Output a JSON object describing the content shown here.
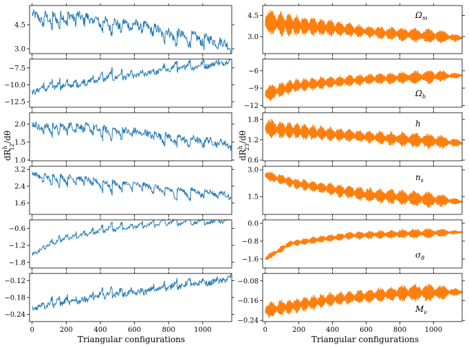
{
  "figure": {
    "x_tick_labels": [
      "0",
      "200",
      "400",
      "600",
      "800",
      "1000"
    ],
    "xlabel_left": "Triangular configurations",
    "xlabel_right": "Triangular configurations",
    "ylabel_left": "dRₕ₁₂/dθ",
    "ylabel_right": "dRₕ₂₃/dθ",
    "ylabel_left_main": "dR",
    "ylabel_left_sup": "h",
    "ylabel_left_sub": "12",
    "ylabel_left_tail": "/dθ",
    "ylabel_right_main": "dR",
    "ylabel_right_sup": "h",
    "ylabel_right_sub": "23",
    "ylabel_right_tail": "/dθ",
    "colors": {
      "left": "#1f77b4",
      "right": "#ff7f0e"
    }
  },
  "chart_data": [
    {
      "type": "line",
      "column": "left",
      "param": "Ωm",
      "show_label": false,
      "ylim": [
        2.7,
        5.7
      ],
      "yticks": [
        3.0,
        4.5
      ],
      "ytick_labels": [
        "3.0",
        "4.5"
      ],
      "trend": [
        [
          0,
          5.3
        ],
        [
          300,
          5.2
        ],
        [
          700,
          4.5
        ],
        [
          1170,
          3.4
        ]
      ],
      "sawtooth_drop": 1.6,
      "spike": 0.3
    },
    {
      "type": "line",
      "column": "left",
      "param": "Ωb",
      "show_label": false,
      "ylim": [
        -13.3,
        -6.2
      ],
      "yticks": [
        -12.5,
        -10.0,
        -7.5
      ],
      "ytick_labels": [
        "−12.5",
        "−10.0",
        "−7.5"
      ],
      "trend": [
        [
          0,
          -11.3
        ],
        [
          400,
          -9.6
        ],
        [
          800,
          -8.2
        ],
        [
          1170,
          -6.8
        ]
      ],
      "sawtooth_drop": -2.5,
      "spike": 0.4
    },
    {
      "type": "line",
      "column": "left",
      "param": "h",
      "show_label": false,
      "ylim": [
        0.98,
        2.32
      ],
      "yticks": [
        1.0,
        1.5,
        2.0
      ],
      "ytick_labels": [
        "1.0",
        "1.5",
        "2.0"
      ],
      "trend": [
        [
          0,
          2.05
        ],
        [
          300,
          2.0
        ],
        [
          700,
          1.8
        ],
        [
          1170,
          1.5
        ]
      ],
      "sawtooth_drop": 0.55,
      "spike": 0.1
    },
    {
      "type": "line",
      "column": "left",
      "param": "ns",
      "show_label": false,
      "ylim": [
        1.05,
        3.35
      ],
      "yticks": [
        1.6,
        2.4,
        3.2
      ],
      "ytick_labels": [
        "1.6",
        "2.4",
        "3.2"
      ],
      "trend": [
        [
          0,
          3.1
        ],
        [
          300,
          2.85
        ],
        [
          700,
          2.5
        ],
        [
          1170,
          2.1
        ]
      ],
      "sawtooth_drop": 1.0,
      "spike": 0.12
    },
    {
      "type": "line",
      "column": "left",
      "param": "σ8",
      "show_label": false,
      "ylim": [
        -2.0,
        -0.3
      ],
      "yticks": [
        -1.8,
        -1.2,
        -0.6
      ],
      "ytick_labels": [
        "−1.8",
        "−1.2",
        "−0.6"
      ],
      "trend": [
        [
          0,
          -1.55
        ],
        [
          200,
          -1.0
        ],
        [
          600,
          -0.6
        ],
        [
          1170,
          -0.4
        ]
      ],
      "sawtooth_drop": -0.6,
      "spike": 0.06
    },
    {
      "type": "line",
      "column": "left",
      "param": "Mν",
      "show_label": false,
      "ylim": [
        -0.265,
        -0.095
      ],
      "yticks": [
        -0.24,
        -0.18,
        -0.12
      ],
      "ytick_labels": [
        "−0.24",
        "−0.18",
        "−0.12"
      ],
      "trend": [
        [
          0,
          -0.225
        ],
        [
          400,
          -0.185
        ],
        [
          800,
          -0.155
        ],
        [
          1170,
          -0.12
        ]
      ],
      "sawtooth_drop": -0.06,
      "spike": 0.01
    },
    {
      "type": "line",
      "column": "right",
      "param": "Ωm",
      "show_label": true,
      "label_main": "Ω",
      "label_sub": "m",
      "ylim": [
        1.8,
        5.2
      ],
      "yticks": [
        3.0,
        4.5
      ],
      "ytick_labels": [
        "3.0",
        "4.5"
      ],
      "center": [
        [
          0,
          4.0
        ],
        [
          300,
          3.7
        ],
        [
          700,
          3.25
        ],
        [
          1170,
          2.9
        ]
      ],
      "amp": [
        [
          0,
          1.0
        ],
        [
          600,
          0.45
        ],
        [
          1000,
          0.6
        ],
        [
          1170,
          0.2
        ]
      ]
    },
    {
      "type": "line",
      "column": "right",
      "param": "Ωb",
      "show_label": true,
      "label_main": "Ω",
      "label_sub": "b",
      "ylim": [
        -12.3,
        -4.0
      ],
      "yticks": [
        -12,
        -9,
        -6
      ],
      "ytick_labels": [
        "−12",
        "−9",
        "−6"
      ],
      "center": [
        [
          0,
          -10.0
        ],
        [
          200,
          -8.5
        ],
        [
          600,
          -7.5
        ],
        [
          1170,
          -6.8
        ]
      ],
      "amp": [
        [
          0,
          1.5
        ],
        [
          600,
          1.0
        ],
        [
          1000,
          1.3
        ],
        [
          1170,
          0.3
        ]
      ]
    },
    {
      "type": "line",
      "column": "right",
      "param": "h",
      "show_label": true,
      "label_main": "h",
      "label_sub": "",
      "ylim": [
        0.58,
        2.0
      ],
      "yticks": [
        0.6,
        1.2,
        1.8
      ],
      "ytick_labels": [
        "0.6",
        "1.2",
        "1.8"
      ],
      "center": [
        [
          0,
          1.55
        ],
        [
          300,
          1.4
        ],
        [
          700,
          1.25
        ],
        [
          1170,
          1.1
        ]
      ],
      "amp": [
        [
          0,
          0.3
        ],
        [
          600,
          0.2
        ],
        [
          1000,
          0.25
        ],
        [
          1170,
          0.1
        ]
      ]
    },
    {
      "type": "line",
      "column": "right",
      "param": "ns",
      "show_label": true,
      "label_main": "n",
      "label_sub": "s",
      "ylim": [
        0.5,
        3.2
      ],
      "yticks": [
        1.5,
        3.0
      ],
      "ytick_labels": [
        "1.5",
        "3.0"
      ],
      "center": [
        [
          0,
          2.7
        ],
        [
          200,
          2.2
        ],
        [
          600,
          1.6
        ],
        [
          1170,
          1.2
        ]
      ],
      "amp": [
        [
          0,
          0.3
        ],
        [
          600,
          0.45
        ],
        [
          1000,
          0.5
        ],
        [
          1170,
          0.1
        ]
      ]
    },
    {
      "type": "line",
      "column": "right",
      "param": "σ8",
      "show_label": true,
      "label_main": "σ",
      "label_sub": "8",
      "ylim": [
        -2.0,
        0.15
      ],
      "yticks": [
        -1.6,
        -0.8,
        0.0
      ],
      "ytick_labels": [
        "−1.6",
        "−0.8",
        "0.0"
      ],
      "center": [
        [
          0,
          -1.6
        ],
        [
          150,
          -0.9
        ],
        [
          500,
          -0.55
        ],
        [
          1170,
          -0.4
        ]
      ],
      "amp": [
        [
          0,
          0.15
        ],
        [
          600,
          0.2
        ],
        [
          1000,
          0.25
        ],
        [
          1170,
          0.05
        ]
      ]
    },
    {
      "type": "line",
      "column": "right",
      "param": "Mν",
      "show_label": true,
      "label_main": "M",
      "label_sub": "ν",
      "ylim": [
        -0.245,
        -0.05
      ],
      "yticks": [
        -0.24,
        -0.16,
        -0.08
      ],
      "ytick_labels": [
        "−0.24",
        "−0.16",
        "−0.08"
      ],
      "center": [
        [
          0,
          -0.2
        ],
        [
          400,
          -0.155
        ],
        [
          800,
          -0.13
        ],
        [
          1170,
          -0.125
        ]
      ],
      "amp": [
        [
          0,
          0.035
        ],
        [
          600,
          0.03
        ],
        [
          1000,
          0.04
        ],
        [
          1170,
          0.01
        ]
      ]
    }
  ]
}
